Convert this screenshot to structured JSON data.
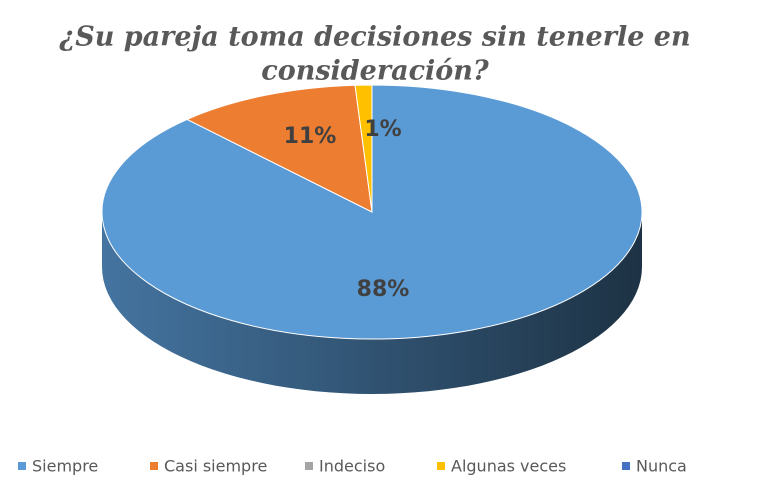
{
  "chart_data": {
    "type": "pie3d",
    "title": [
      "¿Su pareja toma decisiones sin tenerle en",
      "consideración?"
    ],
    "categories": [
      "Siempre",
      "Casi siempre",
      "Indeciso",
      "Algunas veces",
      "Nunca"
    ],
    "values": [
      88,
      11,
      0,
      1,
      0
    ],
    "value_labels": [
      "88%",
      "11%",
      null,
      "1%",
      null
    ],
    "colors": [
      "#5b9bd5",
      "#ed7d31",
      "#a5a5a5",
      "#ffc000",
      "#4472c4"
    ],
    "legend": "bottom"
  }
}
